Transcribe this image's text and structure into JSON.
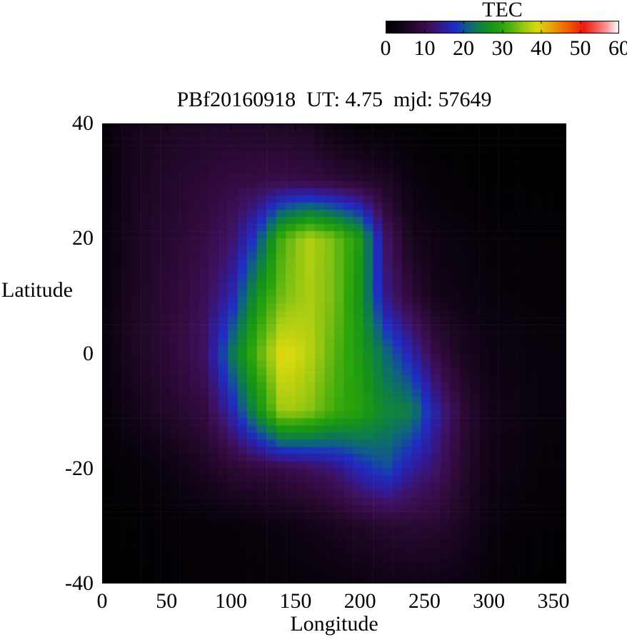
{
  "chart_data": {
    "type": "heatmap",
    "title": "PBf20160918  UT: 4.75  mjd: 57649",
    "xlabel": "Longitude",
    "ylabel": "Latitude",
    "xlim": [
      0,
      360
    ],
    "ylim": [
      -40,
      40
    ],
    "xticks": [
      0,
      50,
      100,
      150,
      200,
      250,
      300,
      350
    ],
    "yticks": [
      40,
      20,
      0,
      -20,
      -40
    ],
    "x_minor_step": 25,
    "y_minor_step": 10,
    "grid_lines": false,
    "legend_position": "top-right-colorbar",
    "colorbar": {
      "title": "TEC",
      "min": 0,
      "max": 60,
      "ticks": [
        0,
        10,
        20,
        30,
        40,
        50,
        60
      ]
    },
    "palette_stops": [
      [
        0,
        "#000000"
      ],
      [
        3,
        "#0d0312"
      ],
      [
        6,
        "#1f0726"
      ],
      [
        9,
        "#330b40"
      ],
      [
        12,
        "#3d1263"
      ],
      [
        15,
        "#2f1d9e"
      ],
      [
        18,
        "#1e2ec2"
      ],
      [
        21,
        "#0f5f86"
      ],
      [
        24,
        "#0e7f46"
      ],
      [
        27,
        "#169317"
      ],
      [
        30,
        "#2ca40c"
      ],
      [
        33,
        "#63b711"
      ],
      [
        36,
        "#a2ca12"
      ],
      [
        39,
        "#d8d90e"
      ],
      [
        42,
        "#e9ab09"
      ],
      [
        45,
        "#ef7a06"
      ],
      [
        48,
        "#f34a04"
      ],
      [
        51,
        "#ef1a0e"
      ],
      [
        54,
        "#f35553"
      ],
      [
        57,
        "#f99d9d"
      ],
      [
        60,
        "#ffffff"
      ]
    ],
    "grid": {
      "lon_start": 0,
      "lon_step": 20,
      "lon_count": 19,
      "lat_start": 40,
      "lat_step": -10,
      "lat_count": 9,
      "units": "TECU",
      "values": [
        [
          0.8,
          4.0,
          5.0,
          5.5,
          6.0,
          6.0,
          6.0,
          5.5,
          5.0,
          2.0,
          0.6,
          0.5,
          0.4,
          0.3,
          0.3,
          0.3,
          0.3,
          0.3,
          0.3
        ],
        [
          1.0,
          4.5,
          6.0,
          7.0,
          8.0,
          9.0,
          9.5,
          10.0,
          9.5,
          8.5,
          7.0,
          5.5,
          2.5,
          1.2,
          0.6,
          0.5,
          0.4,
          0.4,
          0.4
        ],
        [
          1.2,
          4.5,
          6.5,
          7.5,
          9.5,
          12.0,
          19.0,
          32.0,
          37.0,
          34.0,
          28.0,
          12.0,
          4.5,
          3.0,
          2.0,
          1.2,
          1.0,
          0.8,
          0.8
        ],
        [
          1.5,
          5.0,
          7.0,
          8.5,
          11.0,
          16.0,
          27.0,
          34.0,
          36.5,
          34.0,
          27.0,
          14.0,
          8.0,
          4.0,
          3.0,
          2.0,
          1.5,
          1.2,
          1.2
        ],
        [
          1.8,
          5.0,
          7.0,
          9.0,
          12.0,
          23.0,
          32.0,
          40.0,
          37.5,
          32.5,
          28.0,
          22.0,
          16.0,
          9.0,
          5.0,
          3.0,
          2.5,
          2.0,
          1.8
        ],
        [
          1.0,
          3.5,
          5.5,
          7.0,
          9.0,
          16.0,
          26.0,
          36.5,
          35.0,
          31.0,
          29.0,
          25.0,
          24.0,
          15.0,
          8.0,
          4.0,
          3.0,
          2.0,
          2.0
        ],
        [
          0.5,
          1.0,
          2.0,
          3.5,
          5.5,
          7.5,
          8.5,
          9.5,
          11.0,
          13.0,
          17.0,
          20.0,
          15.0,
          12.0,
          7.0,
          3.5,
          2.5,
          1.5,
          1.5
        ],
        [
          0.3,
          0.5,
          0.8,
          1.0,
          1.2,
          1.5,
          2.0,
          2.5,
          3.5,
          5.0,
          6.0,
          7.0,
          7.5,
          7.0,
          5.0,
          2.5,
          1.0,
          0.8,
          0.8
        ],
        [
          0.2,
          0.3,
          0.5,
          0.7,
          0.8,
          1.0,
          1.2,
          1.5,
          1.8,
          2.0,
          2.8,
          3.2,
          3.5,
          3.5,
          2.8,
          1.2,
          0.6,
          0.4,
          0.4
        ]
      ]
    },
    "cell_deg": {
      "lon": 7.5,
      "lat": 1.25
    }
  }
}
